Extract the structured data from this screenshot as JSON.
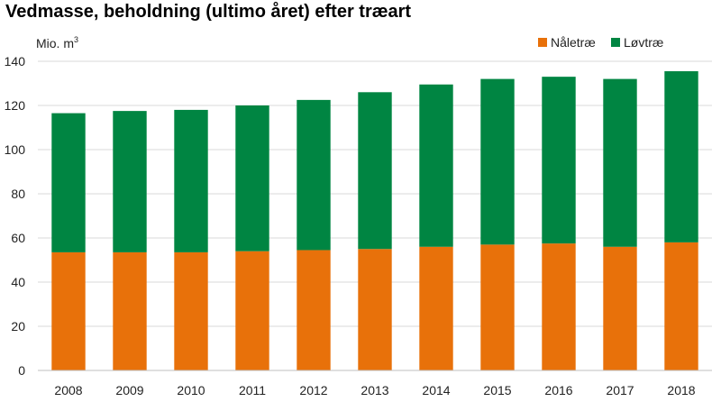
{
  "title": "Vedmasse, beholdning (ultimo året) efter træart",
  "chart_data": {
    "type": "bar",
    "stacked": true,
    "title": "Vedmasse, beholdning (ultimo året) efter træart",
    "ylabel": "Mio. m",
    "ylabel_superscript": "3",
    "xlabel": "",
    "ylim": [
      0,
      140
    ],
    "yticks": [
      0,
      20,
      40,
      60,
      80,
      100,
      120,
      140
    ],
    "grid": true,
    "legend_position": "top-right",
    "categories": [
      "2008",
      "2009",
      "2010",
      "2011",
      "2012",
      "2013",
      "2014",
      "2015",
      "2016",
      "2017",
      "2018"
    ],
    "series": [
      {
        "name": "Nåletræ",
        "color": "#E8710A",
        "values": [
          53.5,
          53.5,
          53.5,
          54,
          54.5,
          55,
          56,
          57,
          57.5,
          56,
          58
        ]
      },
      {
        "name": "Løvtræ",
        "color": "#008542",
        "values": [
          63,
          64,
          64.5,
          66,
          68,
          71,
          73.5,
          75,
          75.5,
          76,
          77.5
        ]
      }
    ]
  }
}
